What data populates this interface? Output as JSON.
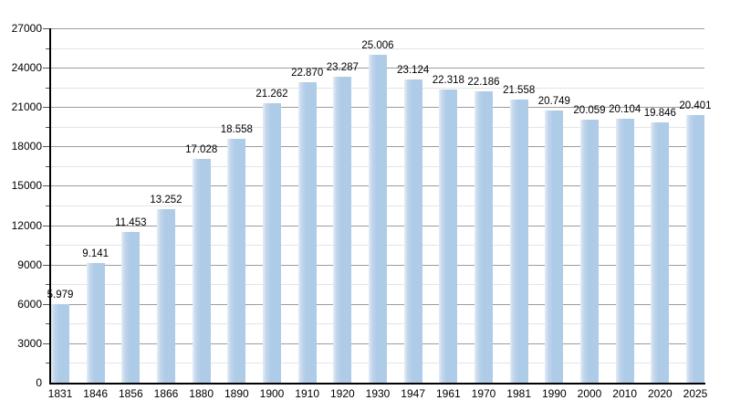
{
  "chart_data": {
    "type": "bar",
    "title": "",
    "xlabel": "",
    "ylabel": "",
    "categories": [
      "1831",
      "1846",
      "1856",
      "1866",
      "1880",
      "1890",
      "1900",
      "1910",
      "1920",
      "1930",
      "1947",
      "1961",
      "1970",
      "1981",
      "1990",
      "2000",
      "2010",
      "2020",
      "2025"
    ],
    "values": [
      5979,
      9141,
      11453,
      13252,
      17028,
      18558,
      21262,
      22870,
      23287,
      25006,
      23124,
      22318,
      22186,
      21558,
      20749,
      20059,
      20104,
      19846,
      20401
    ],
    "value_labels": [
      "5.979",
      "9.141",
      "11.453",
      "13.252",
      "17.028",
      "18.558",
      "21.262",
      "22.870",
      "23.287",
      "25.006",
      "23.124",
      "22.318",
      "22.186",
      "21.558",
      "20.749",
      "20.059",
      "20.104",
      "19.846",
      "20.401"
    ],
    "ylim": [
      0,
      27000
    ],
    "y_major_step": 3000,
    "y_minor_step": 1500,
    "y_tick_labels": [
      "0",
      "3000",
      "6000",
      "9000",
      "12000",
      "15000",
      "18000",
      "21000",
      "24000",
      "27000"
    ],
    "grid": "on",
    "legend": "none",
    "colors": {
      "bar_fill": "#aecbe8",
      "bar_fill_light": "#e6eef7",
      "grid_major": "#9c9c9c",
      "grid_minor": "#e4e4e4",
      "axis": "#000000",
      "text": "#000000",
      "background": "#ffffff"
    }
  }
}
